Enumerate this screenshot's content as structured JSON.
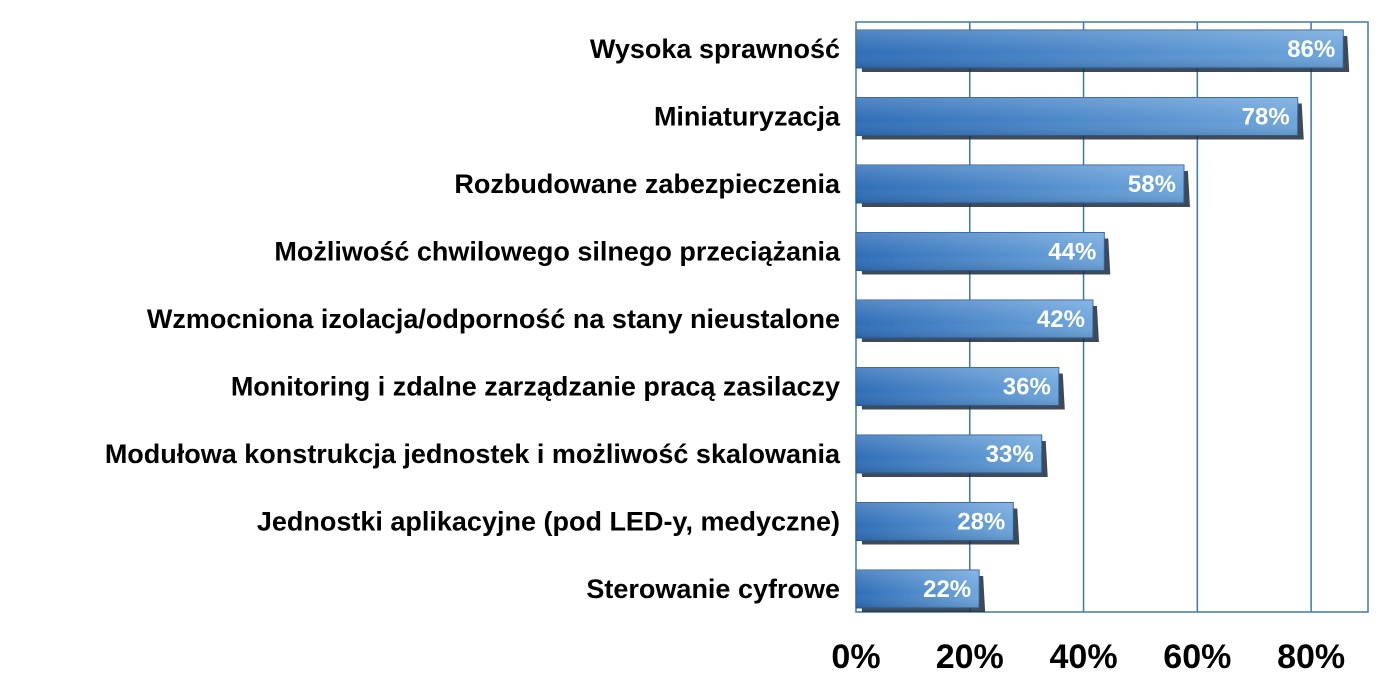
{
  "chart_data": {
    "type": "bar",
    "orientation": "horizontal",
    "title": "",
    "xlabel": "",
    "ylabel": "",
    "categories": [
      "Wysoka sprawność",
      "Miniaturyzacja",
      "Rozbudowane zabezpieczenia",
      "Możliwość chwilowego silnego przeciążania",
      "Wzmocniona izolacja/odporność na stany nieustalone",
      "Monitoring i zdalne zarządzanie pracą zasilaczy",
      "Modułowa konstrukcja jednostek i możliwość skalowania",
      "Jednostki aplikacyjne (pod LED-y, medyczne)",
      "Sterowanie cyfrowe"
    ],
    "values": [
      86,
      78,
      58,
      44,
      42,
      36,
      33,
      28,
      22
    ],
    "value_labels": [
      "86%",
      "78%",
      "58%",
      "44%",
      "42%",
      "36%",
      "33%",
      "28%",
      "22%"
    ],
    "xlim": [
      0,
      90
    ],
    "x_ticks": [
      0,
      20,
      40,
      60,
      80
    ],
    "x_tick_labels": [
      "0%",
      "20%",
      "40%",
      "60%",
      "80%"
    ],
    "grid": "vertical",
    "legend": "none",
    "colors": {
      "bar_light": "#6ea6dc",
      "bar_dark": "#2f6eb8",
      "bar_shadow": "#1e2a3a",
      "gridline": "#3a78b8",
      "frame": "#3a78b8",
      "value_text": "#ffffff",
      "label_text": "#000000"
    }
  }
}
